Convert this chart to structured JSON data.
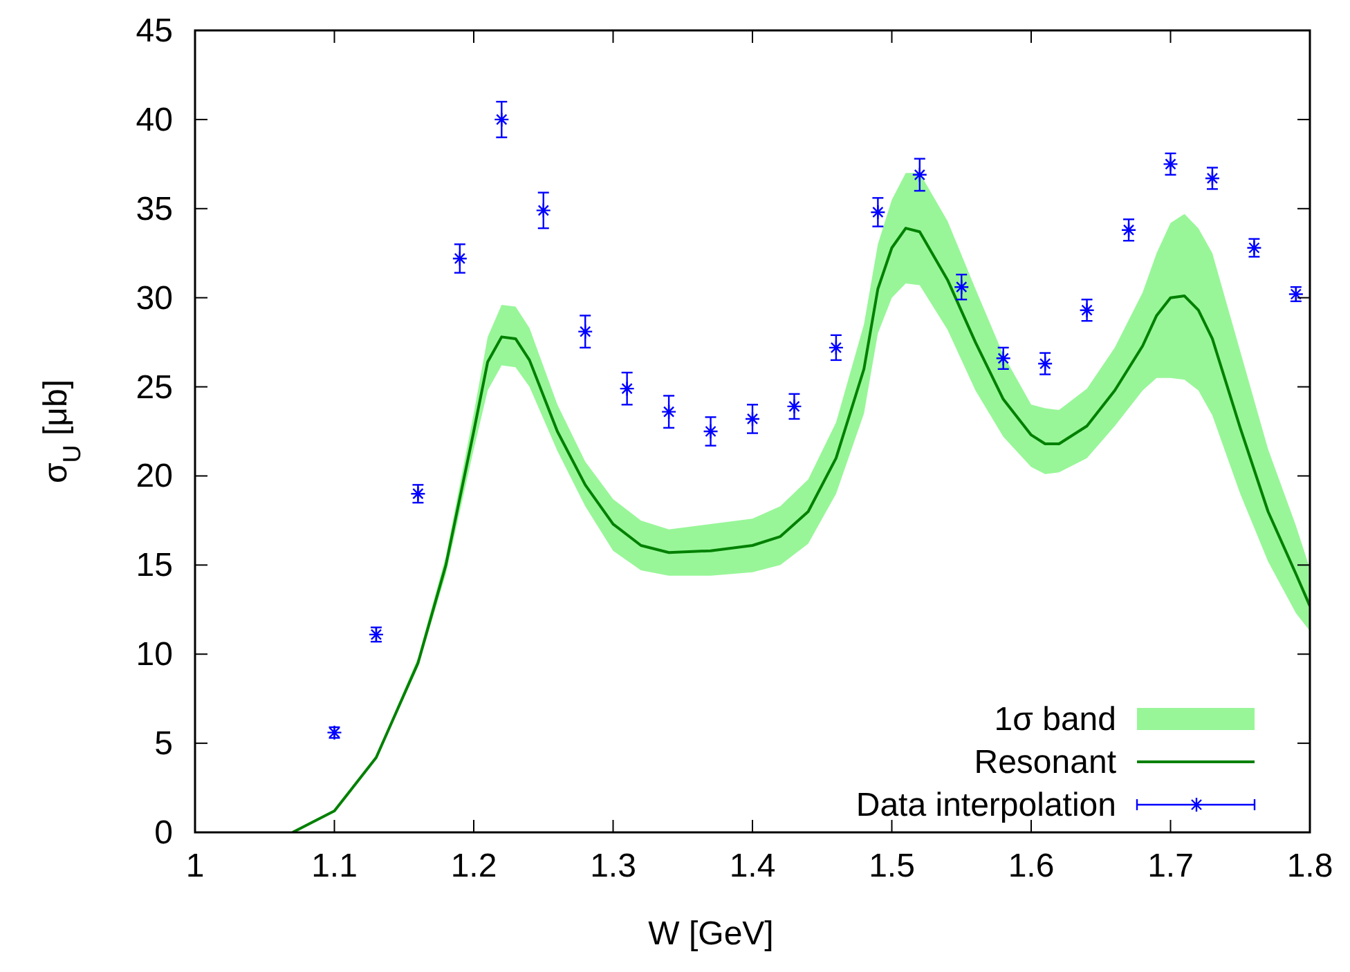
{
  "chart_data": {
    "type": "line",
    "xlabel": "W [GeV]",
    "ylabel": "σ$_{U}$ [μb]",
    "xlim": [
      1,
      1.8
    ],
    "ylim": [
      0,
      45
    ],
    "xticks": [
      1,
      1.1,
      1.2,
      1.3,
      1.4,
      1.5,
      1.6,
      1.7,
      1.8
    ],
    "yticks": [
      0,
      5,
      10,
      15,
      20,
      25,
      30,
      35,
      40,
      45
    ],
    "grid": false,
    "legend": "bottom right",
    "annotations": [
      "1σ band"
    ],
    "series": [
      {
        "name": "Resonant",
        "color": "#008000",
        "marker": "none",
        "line_style": "solid",
        "x": [
          1.07,
          1.1,
          1.13,
          1.16,
          1.18,
          1.2,
          1.21,
          1.22,
          1.23,
          1.24,
          1.26,
          1.28,
          1.3,
          1.32,
          1.34,
          1.37,
          1.4,
          1.42,
          1.44,
          1.46,
          1.48,
          1.49,
          1.5,
          1.51,
          1.52,
          1.54,
          1.56,
          1.58,
          1.6,
          1.61,
          1.62,
          1.64,
          1.66,
          1.68,
          1.69,
          1.7,
          1.71,
          1.72,
          1.73,
          1.75,
          1.77,
          1.79,
          1.8
        ],
        "values": [
          0,
          1.2,
          4.2,
          9.5,
          15,
          22.5,
          26.4,
          27.8,
          27.7,
          26.5,
          22.5,
          19.5,
          17.3,
          16.1,
          15.7,
          15.8,
          16.1,
          16.6,
          18,
          21,
          26,
          30.5,
          32.8,
          33.9,
          33.7,
          31,
          27.5,
          24.3,
          22.3,
          21.8,
          21.8,
          22.8,
          24.8,
          27.3,
          29,
          30,
          30.1,
          29.3,
          27.7,
          22.7,
          18,
          14.5,
          12.7
        ],
        "lower": [
          0,
          1.2,
          4.2,
          9.3,
          14.5,
          21.5,
          24.8,
          26.2,
          26.1,
          25,
          21.4,
          18.3,
          15.8,
          14.7,
          14.4,
          14.4,
          14.6,
          15,
          16.2,
          19,
          23.5,
          28,
          30,
          30.8,
          30.7,
          28.2,
          24.8,
          22.2,
          20.5,
          20.1,
          20.2,
          21,
          22.8,
          24.8,
          25.5,
          25.5,
          25.4,
          24.8,
          23.4,
          19,
          15.2,
          12.3,
          11.3
        ],
        "upper": [
          0,
          1.2,
          4.3,
          9.8,
          15.5,
          23.5,
          27.8,
          29.6,
          29.5,
          28.3,
          24,
          20.8,
          18.7,
          17.5,
          17,
          17.3,
          17.6,
          18.3,
          19.8,
          23,
          28.5,
          33,
          35.5,
          37,
          37,
          34.3,
          30.5,
          26.8,
          24,
          23.8,
          23.7,
          24.9,
          27.2,
          30.3,
          32.5,
          34.2,
          34.7,
          33.9,
          32.5,
          27,
          21.5,
          17.2,
          14.8
        ]
      },
      {
        "name": "Data interpolation",
        "type": "scatter",
        "color": "#0000ff",
        "marker": "cross",
        "x": [
          1.1,
          1.13,
          1.16,
          1.19,
          1.22,
          1.25,
          1.28,
          1.31,
          1.34,
          1.37,
          1.4,
          1.43,
          1.46,
          1.49,
          1.52,
          1.55,
          1.58,
          1.61,
          1.64,
          1.67,
          1.7,
          1.73,
          1.76,
          1.79
        ],
        "values": [
          5.6,
          11.1,
          19,
          32.2,
          40,
          34.9,
          28.1,
          24.9,
          23.6,
          22.5,
          23.2,
          23.9,
          27.2,
          34.8,
          36.9,
          30.6,
          26.6,
          26.3,
          29.3,
          33.8,
          37.5,
          36.7,
          32.8,
          30.2
        ],
        "errors": [
          0.3,
          0.4,
          0.5,
          0.8,
          1,
          1,
          0.9,
          0.9,
          0.9,
          0.8,
          0.8,
          0.7,
          0.7,
          0.8,
          0.9,
          0.7,
          0.6,
          0.6,
          0.6,
          0.6,
          0.6,
          0.6,
          0.5,
          0.4
        ]
      }
    ]
  }
}
